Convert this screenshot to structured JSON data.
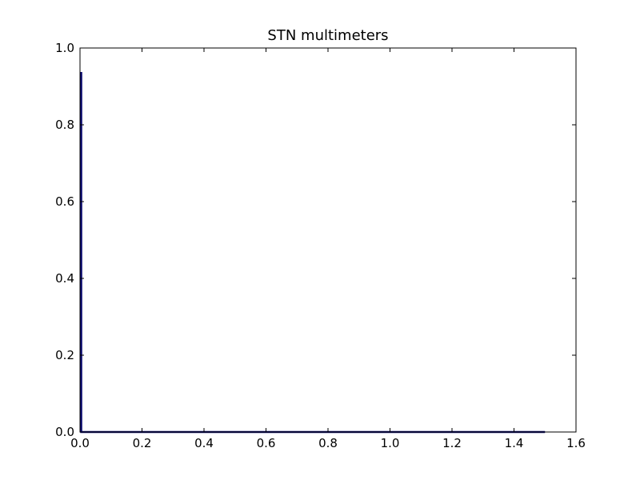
{
  "chart_data": {
    "type": "line",
    "title": "STN multimeters",
    "xlabel": "",
    "ylabel": "",
    "xlim": [
      0.0,
      1.6
    ],
    "ylim": [
      0.0,
      1.0
    ],
    "x_ticks": [
      0.0,
      0.2,
      0.4,
      0.6,
      0.8,
      1.0,
      1.2,
      1.4,
      1.6
    ],
    "x_tick_labels": [
      "0.0",
      "0.2",
      "0.4",
      "0.6",
      "0.8",
      "1.0",
      "1.2",
      "1.4",
      "1.6"
    ],
    "y_ticks": [
      0.0,
      0.2,
      0.4,
      0.6,
      0.8,
      1.0
    ],
    "y_tick_labels": [
      "0.0",
      "0.2",
      "0.4",
      "0.6",
      "0.8",
      "1.0"
    ],
    "grid": false,
    "series": [
      {
        "color": "#0b0b6e",
        "x": [
          0.0,
          0.004,
          0.004,
          0.008,
          1.5
        ],
        "y": [
          0.935,
          0.935,
          0.0,
          0.0,
          0.0
        ]
      }
    ]
  }
}
